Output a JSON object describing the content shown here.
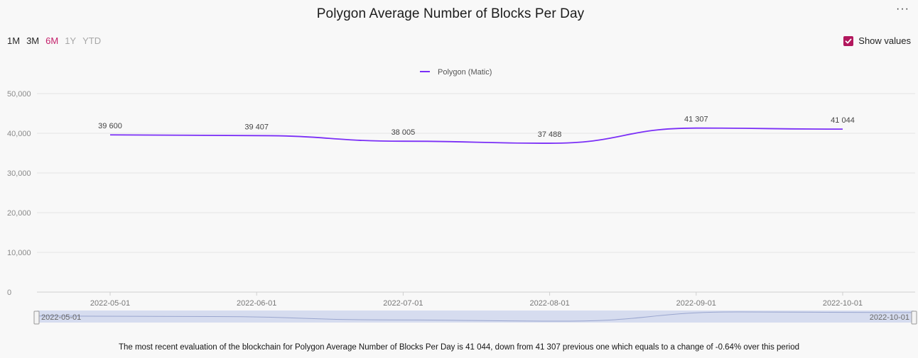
{
  "title": "Polygon Average Number of Blocks Per Day",
  "menu_label": "···",
  "ranges": [
    {
      "label": "1M",
      "state": "normal"
    },
    {
      "label": "3M",
      "state": "normal"
    },
    {
      "label": "6M",
      "state": "active"
    },
    {
      "label": "1Y",
      "state": "disabled"
    },
    {
      "label": "YTD",
      "state": "disabled"
    }
  ],
  "show_values": {
    "label": "Show values",
    "checked": true
  },
  "navigator": {
    "start_label": "2022-05-01",
    "end_label": "2022-10-01"
  },
  "footer_text": "The most recent evaluation of the blockchain for Polygon Average Number of Blocks Per Day is 41 044, down from 41 307 previous one which equals to a change of -0.64% over this period",
  "colors": {
    "series": "#7b2ff7",
    "accent": "#c41f6a",
    "checkbox": "#b2175d",
    "navigator_fill": "#d6dcef"
  },
  "chart_data": {
    "type": "line",
    "x": [
      "2022-05-01",
      "2022-06-01",
      "2022-07-01",
      "2022-08-01",
      "2022-09-01",
      "2022-10-01"
    ],
    "series": [
      {
        "name": "Polygon (Matic)",
        "values": [
          39600,
          39407,
          38005,
          37488,
          41307,
          41044
        ],
        "labels": [
          "39 600",
          "39 407",
          "38 005",
          "37 488",
          "41 307",
          "41 044"
        ]
      }
    ],
    "ylim": [
      0,
      50000
    ],
    "yticks": [
      0,
      10000,
      20000,
      30000,
      40000,
      50000
    ],
    "ytick_labels": [
      "0",
      "10,000",
      "20,000",
      "30,000",
      "40,000",
      "50,000"
    ],
    "grid": true,
    "legend": "top-center"
  }
}
